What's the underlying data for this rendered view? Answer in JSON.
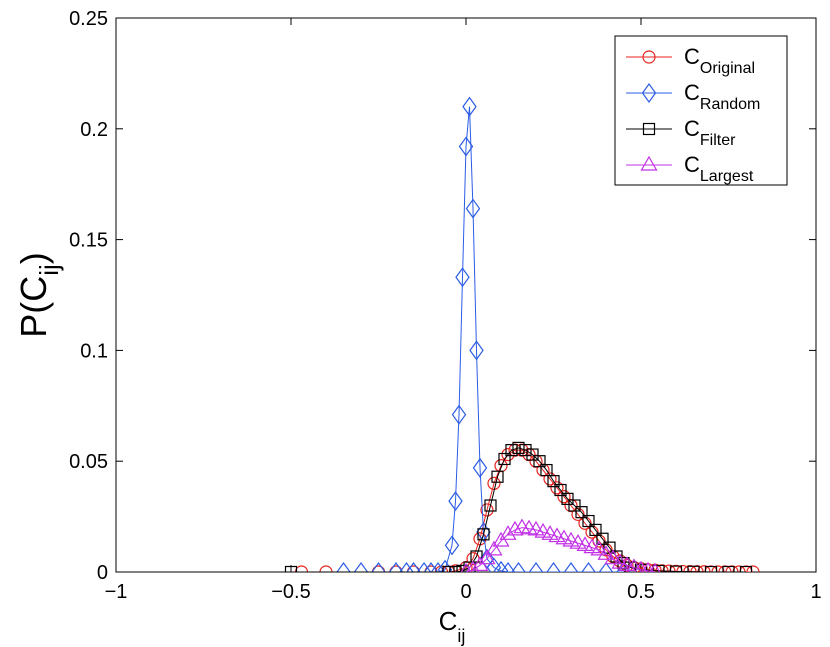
{
  "chart_data": {
    "type": "line",
    "xlabel": {
      "main": "C",
      "sub": "ij"
    },
    "ylabel": {
      "main": "P(C",
      "sub": "ij",
      "close": ")"
    },
    "xlim": [
      -1,
      1
    ],
    "ylim": [
      0,
      0.25
    ],
    "xticks": [
      -1,
      -0.5,
      0,
      0.5,
      1
    ],
    "xtick_labels": [
      "−1",
      "−0.5",
      "0",
      "0.5",
      "1"
    ],
    "yticks": [
      0,
      0.05,
      0.1,
      0.15,
      0.2,
      0.25
    ],
    "ytick_labels": [
      "0",
      "0.05",
      "0.1",
      "0.15",
      "0.2",
      "0.25"
    ],
    "legend_position": "top-right",
    "series": [
      {
        "name": "C",
        "name_sub": "Original",
        "color": "#e8231c",
        "marker": "circle",
        "x": [
          -0.47,
          -0.4,
          -0.25,
          -0.2,
          -0.15,
          -0.1,
          -0.07,
          -0.05,
          -0.03,
          0.0,
          0.02,
          0.04,
          0.06,
          0.08,
          0.1,
          0.12,
          0.14,
          0.16,
          0.18,
          0.2,
          0.22,
          0.24,
          0.26,
          0.28,
          0.3,
          0.32,
          0.34,
          0.36,
          0.38,
          0.4,
          0.42,
          0.44,
          0.46,
          0.48,
          0.5,
          0.52,
          0.54,
          0.56,
          0.58,
          0.6,
          0.62,
          0.64,
          0.66,
          0.68,
          0.7,
          0.72,
          0.74,
          0.76,
          0.78,
          0.8,
          0.82
        ],
        "y": [
          0,
          0,
          0,
          0,
          0,
          0,
          0,
          0,
          0.0005,
          0.002,
          0.006,
          0.015,
          0.028,
          0.04,
          0.048,
          0.053,
          0.055,
          0.055,
          0.053,
          0.05,
          0.046,
          0.042,
          0.038,
          0.034,
          0.03,
          0.026,
          0.022,
          0.018,
          0.014,
          0.01,
          0.007,
          0.005,
          0.003,
          0.002,
          0.0015,
          0.001,
          0.0008,
          0.0005,
          0.0004,
          0.0003,
          0.0002,
          0.0002,
          0.0001,
          0.0001,
          0,
          0,
          0,
          0,
          0,
          0,
          0
        ]
      },
      {
        "name": "C",
        "name_sub": "Random",
        "color": "#2b5ce6",
        "marker": "diamond",
        "x": [
          -0.35,
          -0.3,
          -0.25,
          -0.2,
          -0.17,
          -0.15,
          -0.12,
          -0.1,
          -0.08,
          -0.06,
          -0.04,
          -0.03,
          -0.02,
          -0.01,
          0.0,
          0.01,
          0.02,
          0.03,
          0.04,
          0.05,
          0.06,
          0.08,
          0.1,
          0.12,
          0.15,
          0.2,
          0.25,
          0.3,
          0.35,
          0.4,
          0.45
        ],
        "y": [
          0,
          0,
          0,
          0,
          0,
          0,
          0,
          0,
          0,
          0.001,
          0.012,
          0.032,
          0.071,
          0.133,
          0.192,
          0.21,
          0.164,
          0.1,
          0.047,
          0.018,
          0.006,
          0.002,
          0.0005,
          0,
          0,
          0,
          0,
          0,
          0,
          0,
          0
        ]
      },
      {
        "name": "C",
        "name_sub": "Filter",
        "color": "#000000",
        "marker": "square",
        "x": [
          -0.5,
          -0.05,
          -0.03,
          -0.01,
          0.01,
          0.03,
          0.05,
          0.07,
          0.09,
          0.11,
          0.13,
          0.15,
          0.17,
          0.19,
          0.21,
          0.23,
          0.25,
          0.27,
          0.29,
          0.31,
          0.33,
          0.35,
          0.37,
          0.39,
          0.41,
          0.43,
          0.45,
          0.47,
          0.5,
          0.55,
          0.6,
          0.65,
          0.7,
          0.75,
          0.8
        ],
        "y": [
          0,
          0,
          0,
          0.0005,
          0.002,
          0.007,
          0.017,
          0.03,
          0.043,
          0.051,
          0.055,
          0.056,
          0.055,
          0.053,
          0.05,
          0.046,
          0.041,
          0.037,
          0.033,
          0.03,
          0.027,
          0.023,
          0.019,
          0.015,
          0.011,
          0.007,
          0.004,
          0.002,
          0.001,
          0.0005,
          0.0002,
          0.0001,
          0,
          0,
          0
        ]
      },
      {
        "name": "C",
        "name_sub": "Largest",
        "color": "#c230e8",
        "marker": "triangle",
        "x": [
          0.0,
          0.02,
          0.04,
          0.06,
          0.08,
          0.1,
          0.12,
          0.14,
          0.16,
          0.18,
          0.2,
          0.22,
          0.24,
          0.26,
          0.28,
          0.3,
          0.32,
          0.34,
          0.36,
          0.38,
          0.4,
          0.42,
          0.44,
          0.46,
          0.48,
          0.5,
          0.52,
          0.54
        ],
        "y": [
          0,
          0.001,
          0.003,
          0.006,
          0.01,
          0.014,
          0.017,
          0.019,
          0.02,
          0.0195,
          0.019,
          0.018,
          0.017,
          0.016,
          0.015,
          0.014,
          0.013,
          0.012,
          0.011,
          0.01,
          0.008,
          0.006,
          0.004,
          0.003,
          0.002,
          0.001,
          0.0005,
          0
        ]
      }
    ]
  }
}
